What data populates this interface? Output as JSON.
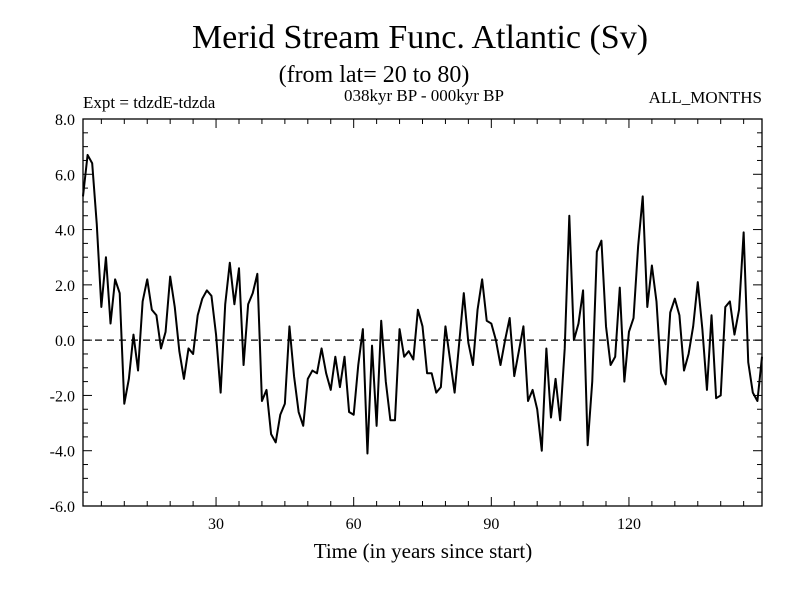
{
  "chart_data": {
    "type": "line",
    "title": "Merid Stream Func. Atlantic (Sv)",
    "subtitle": "(from lat= 20 to 80)",
    "left_label": "Expt = tdzdE-tdzda",
    "center_label": "038kyr BP - 000kyr BP",
    "right_label": "ALL_MONTHS",
    "xlabel": "Time (in years since start)",
    "ylabel": "",
    "xlim": [
      1,
      149
    ],
    "ylim": [
      -6.0,
      8.0
    ],
    "x_ticks": [
      30,
      60,
      90,
      120
    ],
    "x_tick_labels": [
      "30",
      "60",
      "90",
      "120"
    ],
    "y_ticks": [
      -6.0,
      -4.0,
      -2.0,
      0.0,
      2.0,
      4.0,
      6.0,
      8.0
    ],
    "y_tick_labels": [
      "-6.0",
      "-4.0",
      "-2.0",
      "0.0",
      "2.0",
      "4.0",
      "6.0",
      "8.0"
    ],
    "reference_line": {
      "y": 0.0,
      "style": "dashed"
    },
    "series": [
      {
        "name": "Merid Stream Func. Atlantic",
        "color": "#000000",
        "x_start": 1,
        "x_step": 1,
        "values": [
          5.2,
          6.7,
          6.4,
          4.2,
          1.2,
          3.0,
          0.6,
          2.2,
          1.7,
          -2.3,
          -1.4,
          0.2,
          -1.1,
          1.4,
          2.2,
          1.1,
          0.9,
          -0.3,
          0.3,
          2.3,
          1.2,
          -0.4,
          -1.4,
          -0.3,
          -0.5,
          0.9,
          1.5,
          1.8,
          1.6,
          0.2,
          -1.9,
          1.3,
          2.8,
          1.3,
          2.6,
          -0.9,
          1.3,
          1.7,
          2.4,
          -2.2,
          -1.8,
          -3.4,
          -3.7,
          -2.7,
          -2.3,
          0.5,
          -1.3,
          -2.6,
          -3.1,
          -1.4,
          -1.1,
          -1.2,
          -0.3,
          -1.2,
          -1.8,
          -0.6,
          -1.7,
          -0.6,
          -2.6,
          -2.7,
          -0.9,
          0.4,
          -4.1,
          -0.2,
          -3.1,
          0.7,
          -1.5,
          -2.9,
          -2.9,
          0.4,
          -0.6,
          -0.4,
          -0.7,
          1.1,
          0.5,
          -1.2,
          -1.2,
          -1.9,
          -1.7,
          0.5,
          -0.7,
          -1.9,
          -0.1,
          1.7,
          -0.1,
          -0.9,
          1.1,
          2.2,
          0.7,
          0.6,
          0.0,
          -0.9,
          0.0,
          0.8,
          -1.3,
          -0.4,
          0.5,
          -2.2,
          -1.8,
          -2.5,
          -4.0,
          -0.3,
          -2.8,
          -1.4,
          -2.9,
          -0.3,
          4.5,
          0.0,
          0.6,
          1.8,
          -3.8,
          -1.5,
          3.2,
          3.6,
          0.5,
          -0.9,
          -0.6,
          1.9,
          -1.5,
          0.3,
          0.8,
          3.4,
          5.2,
          1.2,
          2.7,
          1.4,
          -1.2,
          -1.6,
          1.0,
          1.5,
          0.9,
          -1.1,
          -0.5,
          0.5,
          2.1,
          0.4,
          -1.8,
          0.9,
          -2.1,
          -2.0,
          1.2,
          1.4,
          0.2,
          1.1,
          3.9,
          -0.8,
          -1.9,
          -2.2,
          -0.6
        ]
      }
    ]
  }
}
